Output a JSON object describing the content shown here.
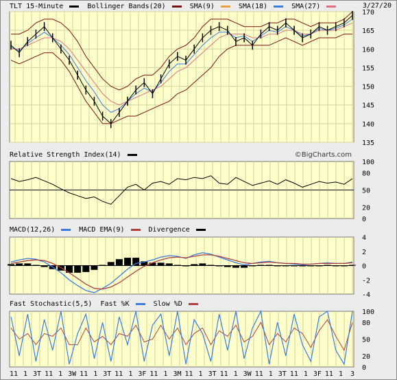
{
  "chart_data": [
    {
      "type": "line",
      "title": "TLT 15-Minute",
      "date": "3/27/20",
      "legend": [
        {
          "name": "TLT 15-Minute",
          "color": "#000000"
        },
        {
          "name": "Bollinger Bands(20)",
          "color": "#7b1010"
        },
        {
          "name": "SMA(9)",
          "color": "#e8a040"
        },
        {
          "name": "SMA(18)",
          "color": "#3a7be0"
        },
        {
          "name": "SMA(27)",
          "color": "#e07080"
        }
      ],
      "y_ticks": [
        "170",
        "165",
        "160",
        "155",
        "150",
        "145",
        "140",
        "135"
      ],
      "ylim": [
        135,
        170
      ],
      "price": [
        161,
        159,
        162,
        164,
        166,
        163,
        160,
        157,
        153,
        149,
        146,
        142,
        140,
        143,
        146,
        149,
        151,
        148,
        152,
        156,
        158,
        157,
        160,
        163,
        165,
        166,
        165,
        162,
        163,
        161,
        164,
        166,
        165,
        167,
        165,
        163,
        164,
        166,
        165,
        166,
        167,
        169
      ],
      "sma": [
        160,
        160,
        161,
        162,
        163,
        163,
        162,
        160,
        157,
        154,
        151,
        148,
        146,
        145,
        146,
        147,
        148,
        149,
        150,
        152,
        154,
        155,
        157,
        159,
        161,
        163,
        164,
        164,
        164,
        163,
        163,
        164,
        164,
        165,
        165,
        164,
        164,
        165,
        165,
        165,
        166,
        167
      ],
      "upper": [
        164,
        164,
        165,
        167,
        168,
        168,
        167,
        165,
        162,
        158,
        155,
        152,
        150,
        149,
        150,
        152,
        153,
        153,
        155,
        158,
        160,
        161,
        163,
        166,
        168,
        168,
        168,
        167,
        166,
        166,
        166,
        167,
        167,
        168,
        168,
        167,
        166,
        167,
        167,
        167,
        168,
        170
      ],
      "lower": [
        157,
        156,
        157,
        158,
        159,
        159,
        157,
        154,
        150,
        146,
        143,
        140,
        140,
        141,
        142,
        142,
        143,
        144,
        145,
        146,
        148,
        149,
        151,
        153,
        155,
        158,
        160,
        161,
        161,
        161,
        161,
        161,
        162,
        163,
        162,
        161,
        162,
        163,
        163,
        163,
        164,
        164
      ]
    },
    {
      "type": "line",
      "title": "Relative Strength Index(14)",
      "copyright": "©BigCharts.com",
      "y_ticks": [
        "100",
        "80",
        "50",
        "20",
        "0"
      ],
      "ylim": [
        0,
        100
      ],
      "values": [
        70,
        65,
        68,
        72,
        66,
        60,
        52,
        45,
        40,
        35,
        38,
        30,
        25,
        40,
        55,
        60,
        50,
        62,
        65,
        60,
        70,
        68,
        72,
        70,
        75,
        62,
        60,
        72,
        65,
        58,
        62,
        66,
        60,
        68,
        62,
        55,
        60,
        65,
        62,
        64,
        60,
        70
      ]
    },
    {
      "type": "line",
      "title": "MACD(12,26)",
      "legend": [
        {
          "name": "MACD(12,26)",
          "color": "#3a7be0"
        },
        {
          "name": "MACD EMA(9)",
          "color": "#b04040"
        },
        {
          "name": "Divergence",
          "color": "#000000"
        }
      ],
      "y_ticks": [
        "4",
        "2",
        "0",
        "-2",
        "-4"
      ],
      "ylim": [
        -4,
        4
      ],
      "macd": [
        0.5,
        0.8,
        1.0,
        0.9,
        0.5,
        -0.2,
        -1.0,
        -2.0,
        -2.8,
        -3.5,
        -3.8,
        -3.2,
        -2.5,
        -1.5,
        -0.5,
        0.3,
        0.5,
        0.8,
        1.2,
        1.4,
        1.3,
        1.0,
        1.5,
        1.8,
        1.6,
        1.2,
        0.8,
        0.4,
        0.1,
        0.3,
        0.5,
        0.6,
        0.4,
        0.3,
        0.2,
        0.1,
        0.2,
        0.3,
        0.4,
        0.3,
        0.3,
        0.5
      ],
      "signal": [
        0.3,
        0.5,
        0.7,
        0.8,
        0.7,
        0.3,
        -0.3,
        -1.0,
        -1.8,
        -2.6,
        -3.2,
        -3.3,
        -3.0,
        -2.4,
        -1.6,
        -0.8,
        -0.1,
        0.4,
        0.8,
        1.1,
        1.2,
        1.1,
        1.3,
        1.5,
        1.5,
        1.3,
        1.0,
        0.7,
        0.4,
        0.3,
        0.4,
        0.5,
        0.4,
        0.3,
        0.3,
        0.2,
        0.2,
        0.3,
        0.3,
        0.3,
        0.3,
        0.4
      ]
    },
    {
      "type": "line",
      "title": "Fast Stochastic(5,5)",
      "legend": [
        {
          "name": "Fast Stochastic(5,5)",
          "color": "#000000"
        },
        {
          "name": "Fast %K",
          "color": "#3a7be0"
        },
        {
          "name": "Slow %D",
          "color": "#b04040"
        }
      ],
      "y_ticks": [
        "100",
        "80",
        "50",
        "20",
        "0"
      ],
      "ylim": [
        0,
        100
      ],
      "fastk": [
        90,
        20,
        95,
        10,
        85,
        30,
        100,
        5,
        60,
        95,
        15,
        80,
        10,
        90,
        40,
        100,
        10,
        75,
        95,
        20,
        100,
        5,
        85,
        60,
        10,
        95,
        30,
        100,
        15,
        70,
        100,
        5,
        80,
        20,
        95,
        40,
        10,
        90,
        100,
        30,
        5,
        100
      ],
      "slowd": [
        70,
        50,
        60,
        40,
        60,
        55,
        70,
        40,
        40,
        70,
        45,
        55,
        40,
        60,
        55,
        75,
        45,
        50,
        75,
        50,
        70,
        40,
        60,
        70,
        40,
        65,
        55,
        75,
        45,
        55,
        80,
        40,
        60,
        45,
        70,
        60,
        35,
        65,
        85,
        55,
        30,
        80
      ],
      "x_ticks": [
        "11",
        "1",
        "3T",
        "11",
        "1",
        "3W",
        "11",
        "1",
        "3T",
        "11",
        "1",
        "3F",
        "11",
        "1",
        "3M",
        "11",
        "1",
        "3T",
        "11",
        "1",
        "3W",
        "11",
        "1",
        "3T",
        "11",
        "1",
        "3F",
        "11",
        "1",
        "3"
      ]
    }
  ]
}
